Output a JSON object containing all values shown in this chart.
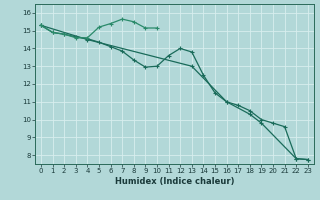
{
  "xlabel": "Humidex (Indice chaleur)",
  "background_color": "#b2d8d8",
  "grid_color": "#d8eeee",
  "line_color_dark": "#1a6b5a",
  "line_color_mid": "#2a8a6a",
  "xlim": [
    -0.5,
    23.5
  ],
  "ylim": [
    7.5,
    16.5
  ],
  "xticks": [
    0,
    1,
    2,
    3,
    4,
    5,
    6,
    7,
    8,
    9,
    10,
    11,
    12,
    13,
    14,
    15,
    16,
    17,
    18,
    19,
    20,
    21,
    22,
    23
  ],
  "yticks": [
    8,
    9,
    10,
    11,
    12,
    13,
    14,
    15,
    16
  ],
  "curve1_x": [
    0,
    1,
    2,
    3,
    4,
    5,
    6,
    7,
    8,
    9,
    10
  ],
  "curve1_y": [
    15.3,
    14.9,
    14.8,
    14.6,
    14.6,
    15.2,
    15.4,
    15.65,
    15.5,
    15.15,
    15.15
  ],
  "curve2_x": [
    0,
    1,
    2,
    3,
    4,
    5,
    6,
    7,
    8,
    9,
    10,
    11,
    12,
    13,
    14,
    15,
    16,
    17,
    18,
    19,
    20,
    21,
    22,
    23
  ],
  "curve2_y": [
    15.3,
    14.9,
    14.8,
    14.65,
    14.55,
    14.35,
    14.1,
    13.85,
    13.35,
    12.95,
    13.0,
    13.6,
    14.0,
    13.8,
    12.5,
    11.5,
    11.0,
    10.8,
    10.5,
    10.0,
    9.8,
    9.6,
    7.8,
    7.75
  ],
  "curve3_x": [
    0,
    4,
    13,
    16,
    18,
    19,
    22,
    23
  ],
  "curve3_y": [
    15.3,
    14.5,
    13.0,
    11.0,
    10.3,
    9.8,
    7.8,
    7.75
  ]
}
